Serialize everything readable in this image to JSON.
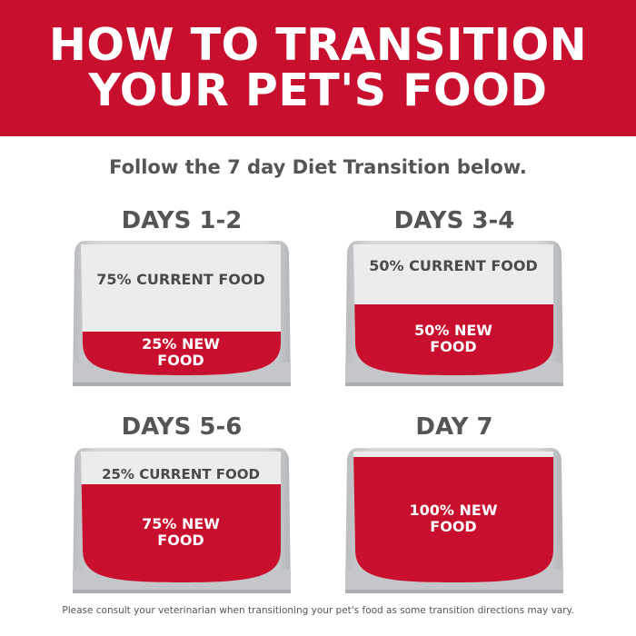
{
  "title_line1": "HOW TO TRANSITION",
  "title_line2": "YOUR PET'S FOOD",
  "subtitle": "Follow the 7 day Diet Transition below.",
  "colors": {
    "brand_red": "#c8102e",
    "bowl_gray": "#c8cacc",
    "text_gray": "#555555"
  },
  "stages": [
    {
      "day": "DAYS 1-2",
      "current": "75% CURRENT FOOD",
      "new": "25% NEW FOOD",
      "new_food_percent": 25
    },
    {
      "day": "DAYS 3-4",
      "current": "50% CURRENT FOOD",
      "new": "50% NEW FOOD",
      "new_food_percent": 50
    },
    {
      "day": "DAYS 5-6",
      "current": "25% CURRENT FOOD",
      "new": "75% NEW FOOD",
      "new_food_percent": 75
    },
    {
      "day": "DAY 7",
      "current": "",
      "new": "100% NEW FOOD",
      "new_food_percent": 100
    }
  ],
  "footnote": "Please consult your veterinarian when transitioning your pet's food as some transition directions may vary."
}
